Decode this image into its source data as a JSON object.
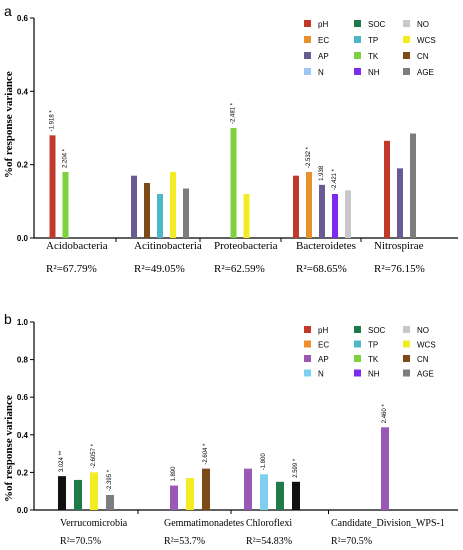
{
  "chart_data": [
    {
      "type": "bar",
      "panel_label": "a",
      "ylabel": "%of response variance",
      "ylim": [
        0,
        0.6
      ],
      "yticks": [
        "0.0",
        "0.2",
        "0.4",
        "0.6"
      ],
      "legend": {
        "placement": "top-right",
        "items": [
          {
            "key": "pH",
            "color": "#c0392b"
          },
          {
            "key": "SOC",
            "color": "#1f7a4a"
          },
          {
            "key": "NO",
            "color": "#c8c8c8"
          },
          {
            "key": "EC",
            "color": "#e8912a"
          },
          {
            "key": "TP",
            "color": "#4cb7c9"
          },
          {
            "key": "WCS",
            "color": "#f4ec22"
          },
          {
            "key": "AP",
            "color": "#6b5b95"
          },
          {
            "key": "TK",
            "color": "#7dd13e"
          },
          {
            "key": "CN",
            "color": "#7b4a16"
          },
          {
            "key": "N",
            "color": "#9ec6f2"
          },
          {
            "key": "NH",
            "color": "#7b2cf0"
          },
          {
            "key": "AGE",
            "color": "#7d7d7d"
          }
        ]
      },
      "groups": [
        {
          "name": "Acidobacteria",
          "r2": "R²=67.79%",
          "bars": [
            {
              "var": "pH",
              "value": 0.28,
              "label": "-1.918 *"
            },
            {
              "var": "TK",
              "value": 0.18,
              "label": "2.204 *"
            },
            {
              "var": "CN",
              "value": 0.0,
              "label": ""
            },
            {
              "var": "AP",
              "value": 0.0,
              "label": ""
            }
          ]
        },
        {
          "name": "Acitinobacteria",
          "r2": "R²=49.05%",
          "bars": [
            {
              "var": "AP",
              "value": 0.17,
              "label": ""
            },
            {
              "var": "CN",
              "value": 0.15,
              "label": ""
            },
            {
              "var": "TP",
              "value": 0.12,
              "label": ""
            },
            {
              "var": "WCS",
              "value": 0.18,
              "label": ""
            },
            {
              "var": "AGE",
              "value": 0.135,
              "label": ""
            }
          ]
        },
        {
          "name": "Proteobacteria",
          "r2": "R²=62.59%",
          "bars": [
            {
              "var": "TK",
              "value": 0.3,
              "label": "-2.481 *"
            },
            {
              "var": "WCS",
              "value": 0.12,
              "label": ""
            }
          ]
        },
        {
          "name": "Bacteroidetes",
          "r2": "R²=68.65%",
          "bars": [
            {
              "var": "pH",
              "value": 0.17,
              "label": ""
            },
            {
              "var": "EC",
              "value": 0.18,
              "label": "-2.532 *"
            },
            {
              "var": "AP",
              "value": 0.145,
              "label": "1.938"
            },
            {
              "var": "NH",
              "value": 0.12,
              "label": "-2.421 *"
            },
            {
              "var": "NO",
              "value": 0.13,
              "label": ""
            }
          ]
        },
        {
          "name": "Nitrospirae",
          "r2": "R²=76.15%",
          "bars": [
            {
              "var": "pH",
              "value": 0.265,
              "label": ""
            },
            {
              "var": "AP",
              "value": 0.19,
              "label": ""
            },
            {
              "var": "AGE",
              "value": 0.285,
              "label": ""
            }
          ]
        }
      ]
    },
    {
      "type": "bar",
      "panel_label": "b",
      "ylabel": "%of response variance",
      "ylim": [
        0,
        1.0
      ],
      "yticks": [
        "0.0",
        "0.2",
        "0.4",
        "0.6",
        "0.8",
        "1.0"
      ],
      "legend": {
        "placement": "top-right",
        "items": [
          {
            "key": "pH",
            "color": "#c0392b"
          },
          {
            "key": "SOC",
            "color": "#1f7a4a"
          },
          {
            "key": "NO",
            "color": "#c8c8c8"
          },
          {
            "key": "EC",
            "color": "#e8912a"
          },
          {
            "key": "TP",
            "color": "#4cb7c9"
          },
          {
            "key": "WCS",
            "color": "#f4ec22"
          },
          {
            "key": "AP",
            "color": "#9b59b6"
          },
          {
            "key": "TK",
            "color": "#7dd13e"
          },
          {
            "key": "CN",
            "color": "#7b4a16"
          },
          {
            "key": "N",
            "color": "#7fd0f0"
          },
          {
            "key": "NH",
            "color": "#7b2cf0"
          },
          {
            "key": "AGE",
            "color": "#7d7d7d"
          }
        ]
      },
      "groups": [
        {
          "name": "Verrucomicrobia",
          "r2": "R²=70.5%",
          "bars": [
            {
              "var": "black",
              "value": 0.18,
              "label": "3.024 **"
            },
            {
              "var": "SOC",
              "value": 0.16,
              "label": ""
            },
            {
              "var": "WCS",
              "value": 0.2,
              "label": "-2.6057 *"
            },
            {
              "var": "AGE",
              "value": 0.08,
              "label": "-2.395 *"
            }
          ]
        },
        {
          "name": "Gemmatimonadetes",
          "r2": "R²=53.7%",
          "bars": [
            {
              "var": "AP",
              "value": 0.13,
              "label": "1.890"
            },
            {
              "var": "WCS",
              "value": 0.17,
              "label": ""
            },
            {
              "var": "CN",
              "value": 0.22,
              "label": "-2.604 *"
            }
          ]
        },
        {
          "name": "Chloroflexi",
          "r2": "R²=54.83%",
          "bars": [
            {
              "var": "AP",
              "value": 0.22,
              "label": ""
            },
            {
              "var": "N",
              "value": 0.19,
              "label": "-1.800"
            },
            {
              "var": "SOC",
              "value": 0.15,
              "label": ""
            },
            {
              "var": "black",
              "value": 0.15,
              "label": "2.599 *"
            }
          ]
        },
        {
          "name": "Candidate_Division_WPS-1",
          "r2": "R²=70.5%",
          "bars": [
            {
              "var": "AP",
              "value": 0.44,
              "label": "2.460 *"
            }
          ]
        }
      ]
    }
  ],
  "colors": {
    "black": "#111111",
    "axis": "#000000"
  }
}
